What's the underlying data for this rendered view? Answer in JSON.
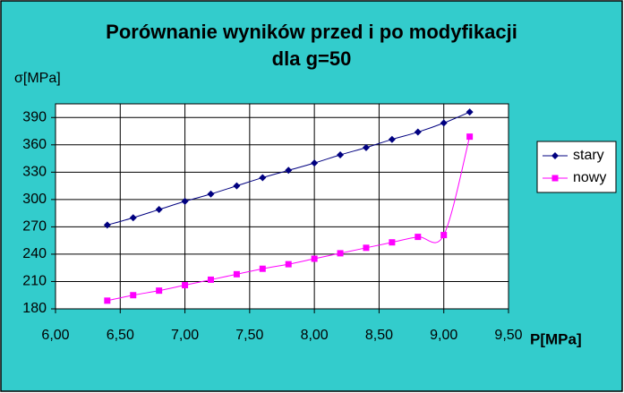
{
  "chart_data": {
    "type": "line",
    "title": "Porównanie wyników przed i po modyfikacji",
    "subtitle": "dla g=50",
    "y_label": "σ[MPa]",
    "x_label": "P[MPa]",
    "x": [
      6.4,
      6.6,
      6.8,
      7.0,
      7.2,
      7.4,
      7.6,
      7.8,
      8.0,
      8.2,
      8.4,
      8.6,
      8.8,
      9.0,
      9.2
    ],
    "series": [
      {
        "name": "stary",
        "color": "#000080",
        "marker": "diamond",
        "values": [
          272,
          280,
          289,
          298,
          306,
          315,
          324,
          332,
          340,
          349,
          357,
          366,
          374,
          384,
          396
        ]
      },
      {
        "name": "nowy",
        "color": "#ff00ff",
        "marker": "square",
        "values": [
          189,
          195,
          200,
          206,
          212,
          218,
          224,
          229,
          235,
          241,
          247,
          253,
          259,
          261,
          369
        ]
      }
    ],
    "xlim": [
      6,
      9.5
    ],
    "xticks": [
      {
        "value": 6,
        "label": "6,00"
      },
      {
        "value": 6.5,
        "label": "6,50"
      },
      {
        "value": 7,
        "label": "7,00"
      },
      {
        "value": 7.5,
        "label": "7,50"
      },
      {
        "value": 8,
        "label": "8,00"
      },
      {
        "value": 8.5,
        "label": "8,50"
      },
      {
        "value": 9,
        "label": "9,00"
      },
      {
        "value": 9.5,
        "label": "9,50"
      }
    ],
    "ylim": [
      180,
      405
    ],
    "yticks": [
      180,
      210,
      240,
      270,
      300,
      330,
      360,
      390
    ],
    "grid": true,
    "smooth": true,
    "legend": "right"
  }
}
